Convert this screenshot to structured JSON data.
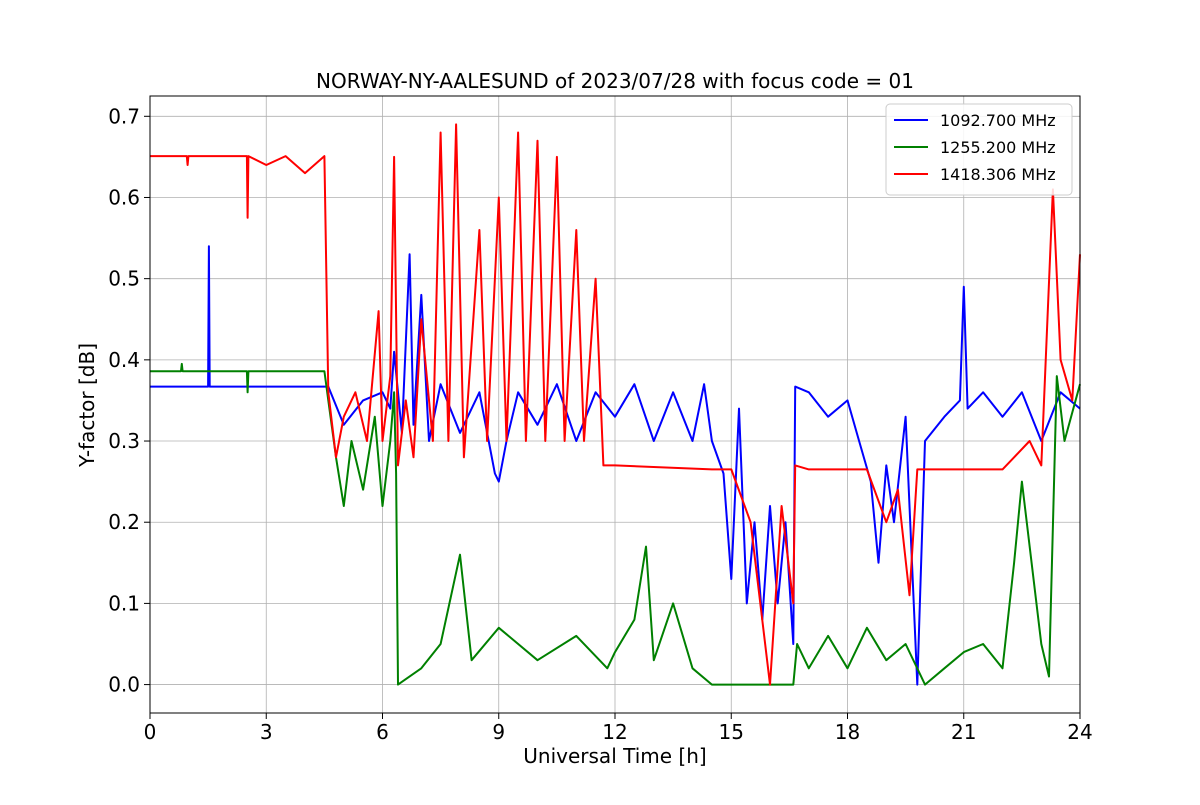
{
  "chart_data": {
    "type": "line",
    "title": "NORWAY-NY-AALESUND of 2023/07/28 with focus code = 01",
    "xlabel": "Universal Time [h]",
    "ylabel": "Y-factor [dB]",
    "xlim": [
      0,
      24
    ],
    "ylim": [
      -0.035,
      0.725
    ],
    "xticks": [
      0,
      3,
      6,
      9,
      12,
      15,
      18,
      21,
      24
    ],
    "yticks": [
      0.0,
      0.1,
      0.2,
      0.3,
      0.4,
      0.5,
      0.6,
      0.7
    ],
    "ytick_labels": [
      "0.0",
      "0.1",
      "0.2",
      "0.3",
      "0.4",
      "0.5",
      "0.6",
      "0.7"
    ],
    "grid": true,
    "legend_position": "top-right",
    "series": [
      {
        "name": "1092.700 MHz",
        "color": "#0000ff",
        "points": [
          [
            0,
            0.367
          ],
          [
            1.5,
            0.367
          ],
          [
            1.52,
            0.54
          ],
          [
            1.54,
            0.367
          ],
          [
            4.5,
            0.367
          ],
          [
            4.6,
            0.367
          ],
          [
            5,
            0.32
          ],
          [
            5.5,
            0.35
          ],
          [
            6,
            0.36
          ],
          [
            6.2,
            0.34
          ],
          [
            6.3,
            0.41
          ],
          [
            6.5,
            0.31
          ],
          [
            6.7,
            0.53
          ],
          [
            6.8,
            0.32
          ],
          [
            7,
            0.48
          ],
          [
            7.2,
            0.3
          ],
          [
            7.5,
            0.37
          ],
          [
            8,
            0.31
          ],
          [
            8.5,
            0.36
          ],
          [
            8.9,
            0.26
          ],
          [
            9,
            0.25
          ],
          [
            9.2,
            0.3
          ],
          [
            9.5,
            0.36
          ],
          [
            10,
            0.32
          ],
          [
            10.5,
            0.37
          ],
          [
            11,
            0.3
          ],
          [
            11.5,
            0.36
          ],
          [
            12,
            0.33
          ],
          [
            12.5,
            0.37
          ],
          [
            13,
            0.3
          ],
          [
            13.5,
            0.36
          ],
          [
            14,
            0.3
          ],
          [
            14.3,
            0.37
          ],
          [
            14.5,
            0.3
          ],
          [
            14.8,
            0.26
          ],
          [
            15,
            0.13
          ],
          [
            15.2,
            0.34
          ],
          [
            15.4,
            0.1
          ],
          [
            15.6,
            0.2
          ],
          [
            15.8,
            0.08
          ],
          [
            16,
            0.22
          ],
          [
            16.2,
            0.1
          ],
          [
            16.4,
            0.2
          ],
          [
            16.6,
            0.05
          ],
          [
            16.65,
            0.367
          ],
          [
            17,
            0.36
          ],
          [
            17.5,
            0.33
          ],
          [
            18,
            0.35
          ],
          [
            18.3,
            0.3
          ],
          [
            18.6,
            0.25
          ],
          [
            18.8,
            0.15
          ],
          [
            19,
            0.27
          ],
          [
            19.2,
            0.2
          ],
          [
            19.5,
            0.33
          ],
          [
            19.8,
            0.0
          ],
          [
            20,
            0.3
          ],
          [
            20.5,
            0.33
          ],
          [
            20.9,
            0.35
          ],
          [
            21,
            0.49
          ],
          [
            21.1,
            0.34
          ],
          [
            21.5,
            0.36
          ],
          [
            22,
            0.33
          ],
          [
            22.5,
            0.36
          ],
          [
            23,
            0.3
          ],
          [
            23.5,
            0.36
          ],
          [
            24,
            0.34
          ]
        ]
      },
      {
        "name": "1255.200 MHz",
        "color": "#008000",
        "points": [
          [
            0,
            0.386
          ],
          [
            0.8,
            0.386
          ],
          [
            0.82,
            0.395
          ],
          [
            0.84,
            0.386
          ],
          [
            2.5,
            0.386
          ],
          [
            2.52,
            0.36
          ],
          [
            2.54,
            0.386
          ],
          [
            4.5,
            0.386
          ],
          [
            4.6,
            0.35
          ],
          [
            4.8,
            0.28
          ],
          [
            5,
            0.22
          ],
          [
            5.2,
            0.3
          ],
          [
            5.5,
            0.24
          ],
          [
            5.8,
            0.33
          ],
          [
            6,
            0.22
          ],
          [
            6.2,
            0.3
          ],
          [
            6.3,
            0.36
          ],
          [
            6.35,
            0.26
          ],
          [
            6.4,
            0.0
          ],
          [
            7,
            0.02
          ],
          [
            7.5,
            0.05
          ],
          [
            8,
            0.16
          ],
          [
            8.3,
            0.03
          ],
          [
            9,
            0.07
          ],
          [
            10,
            0.03
          ],
          [
            11,
            0.06
          ],
          [
            11.8,
            0.02
          ],
          [
            12,
            0.04
          ],
          [
            12.5,
            0.08
          ],
          [
            12.8,
            0.17
          ],
          [
            13,
            0.03
          ],
          [
            13.5,
            0.1
          ],
          [
            14,
            0.02
          ],
          [
            14.5,
            0.0
          ],
          [
            16.6,
            0.0
          ],
          [
            16.7,
            0.05
          ],
          [
            17,
            0.02
          ],
          [
            17.5,
            0.06
          ],
          [
            18,
            0.02
          ],
          [
            18.5,
            0.07
          ],
          [
            19,
            0.03
          ],
          [
            19.5,
            0.05
          ],
          [
            20,
            0.0
          ],
          [
            20.5,
            0.02
          ],
          [
            21,
            0.04
          ],
          [
            21.5,
            0.05
          ],
          [
            22,
            0.02
          ],
          [
            22.3,
            0.15
          ],
          [
            22.5,
            0.25
          ],
          [
            23,
            0.05
          ],
          [
            23.2,
            0.01
          ],
          [
            23.4,
            0.38
          ],
          [
            23.6,
            0.3
          ],
          [
            24,
            0.37
          ]
        ]
      },
      {
        "name": "1418.306 MHz",
        "color": "#ff0000",
        "points": [
          [
            0,
            0.651
          ],
          [
            0.95,
            0.651
          ],
          [
            0.97,
            0.64
          ],
          [
            0.99,
            0.651
          ],
          [
            2.5,
            0.651
          ],
          [
            2.52,
            0.575
          ],
          [
            2.54,
            0.651
          ],
          [
            3,
            0.64
          ],
          [
            3.5,
            0.651
          ],
          [
            4,
            0.63
          ],
          [
            4.5,
            0.651
          ],
          [
            4.6,
            0.36
          ],
          [
            4.8,
            0.28
          ],
          [
            5,
            0.33
          ],
          [
            5.3,
            0.36
          ],
          [
            5.6,
            0.3
          ],
          [
            5.9,
            0.46
          ],
          [
            6,
            0.3
          ],
          [
            6.2,
            0.38
          ],
          [
            6.3,
            0.65
          ],
          [
            6.4,
            0.27
          ],
          [
            6.6,
            0.35
          ],
          [
            6.8,
            0.28
          ],
          [
            7,
            0.45
          ],
          [
            7.3,
            0.3
          ],
          [
            7.5,
            0.68
          ],
          [
            7.7,
            0.3
          ],
          [
            7.9,
            0.69
          ],
          [
            8.1,
            0.28
          ],
          [
            8.5,
            0.56
          ],
          [
            8.7,
            0.3
          ],
          [
            9,
            0.6
          ],
          [
            9.2,
            0.3
          ],
          [
            9.5,
            0.68
          ],
          [
            9.7,
            0.3
          ],
          [
            10,
            0.67
          ],
          [
            10.2,
            0.3
          ],
          [
            10.5,
            0.65
          ],
          [
            10.7,
            0.3
          ],
          [
            11,
            0.56
          ],
          [
            11.2,
            0.3
          ],
          [
            11.5,
            0.5
          ],
          [
            11.7,
            0.27
          ],
          [
            12,
            0.27
          ],
          [
            14.5,
            0.265
          ],
          [
            15,
            0.265
          ],
          [
            15.5,
            0.2
          ],
          [
            16,
            0.0
          ],
          [
            16.3,
            0.22
          ],
          [
            16.6,
            0.1
          ],
          [
            16.65,
            0.27
          ],
          [
            17,
            0.265
          ],
          [
            18,
            0.265
          ],
          [
            18.5,
            0.265
          ],
          [
            19,
            0.2
          ],
          [
            19.3,
            0.24
          ],
          [
            19.6,
            0.11
          ],
          [
            19.8,
            0.265
          ],
          [
            20,
            0.265
          ],
          [
            22,
            0.265
          ],
          [
            22.3,
            0.28
          ],
          [
            22.7,
            0.3
          ],
          [
            23,
            0.27
          ],
          [
            23.3,
            0.61
          ],
          [
            23.5,
            0.4
          ],
          [
            23.8,
            0.35
          ],
          [
            24,
            0.53
          ]
        ]
      }
    ]
  }
}
